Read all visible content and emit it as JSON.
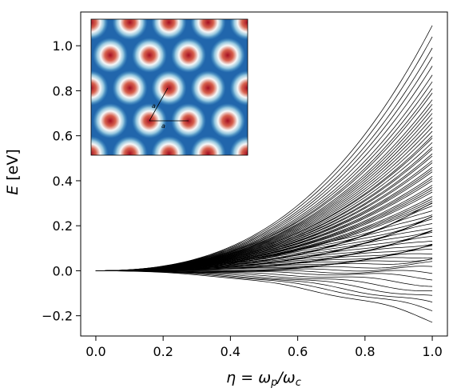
{
  "chart_data": {
    "type": "line",
    "xlabel_base": "η = ω",
    "xlabel_sub1": "p",
    "xlabel_mid": "/ω",
    "xlabel_sub2": "c",
    "ylabel_base": "E",
    "ylabel_unit": " [eV]",
    "xlim": [
      -0.045,
      1.045
    ],
    "ylim": [
      -0.29,
      1.15
    ],
    "x_ticks": [
      0.0,
      0.2,
      0.4,
      0.6,
      0.8,
      1.0
    ],
    "x_tick_labels": [
      "0.0",
      "0.2",
      "0.4",
      "0.6",
      "0.8",
      "1.0"
    ],
    "y_ticks": [
      -0.2,
      0.0,
      0.2,
      0.4,
      0.6,
      0.8,
      1.0
    ],
    "y_tick_labels": [
      "−0.2",
      "0.0",
      "0.2",
      "0.4",
      "0.6",
      "0.8",
      "1.0"
    ],
    "grid": false,
    "line_color": "#000000",
    "series_note": "family of about 75 bands, each starting at E = 0 at η = 0 and fanning out",
    "band_endpoints_at_eta_1": [
      1.09,
      1.04,
      0.99,
      0.95,
      0.91,
      0.87,
      0.84,
      0.81,
      0.79,
      0.76,
      0.74,
      0.72,
      0.7,
      0.68,
      0.66,
      0.64,
      0.62,
      0.6,
      0.59,
      0.57,
      0.55,
      0.54,
      0.52,
      0.51,
      0.49,
      0.48,
      0.46,
      0.45,
      0.44,
      0.42,
      0.41,
      0.4,
      0.38,
      0.37,
      0.36,
      0.35,
      0.33,
      0.32,
      0.31,
      0.3,
      0.29,
      0.28,
      0.27,
      0.26,
      0.25,
      0.24,
      0.23,
      0.22,
      0.21,
      0.2,
      0.19,
      0.18,
      0.17,
      0.16,
      0.15,
      0.14,
      0.13,
      0.12,
      0.11,
      0.1,
      0.09,
      0.08,
      0.07,
      0.06,
      0.05,
      0.03,
      0.01,
      -0.01,
      -0.03,
      -0.06,
      -0.09,
      -0.12,
      -0.15,
      -0.18,
      -0.22
    ],
    "inset": {
      "type": "heatmap",
      "description_labels": [
        "a",
        "a"
      ],
      "colormap": [
        "#1f5da1",
        "#f7f7f7",
        "#b2172b"
      ]
    }
  }
}
